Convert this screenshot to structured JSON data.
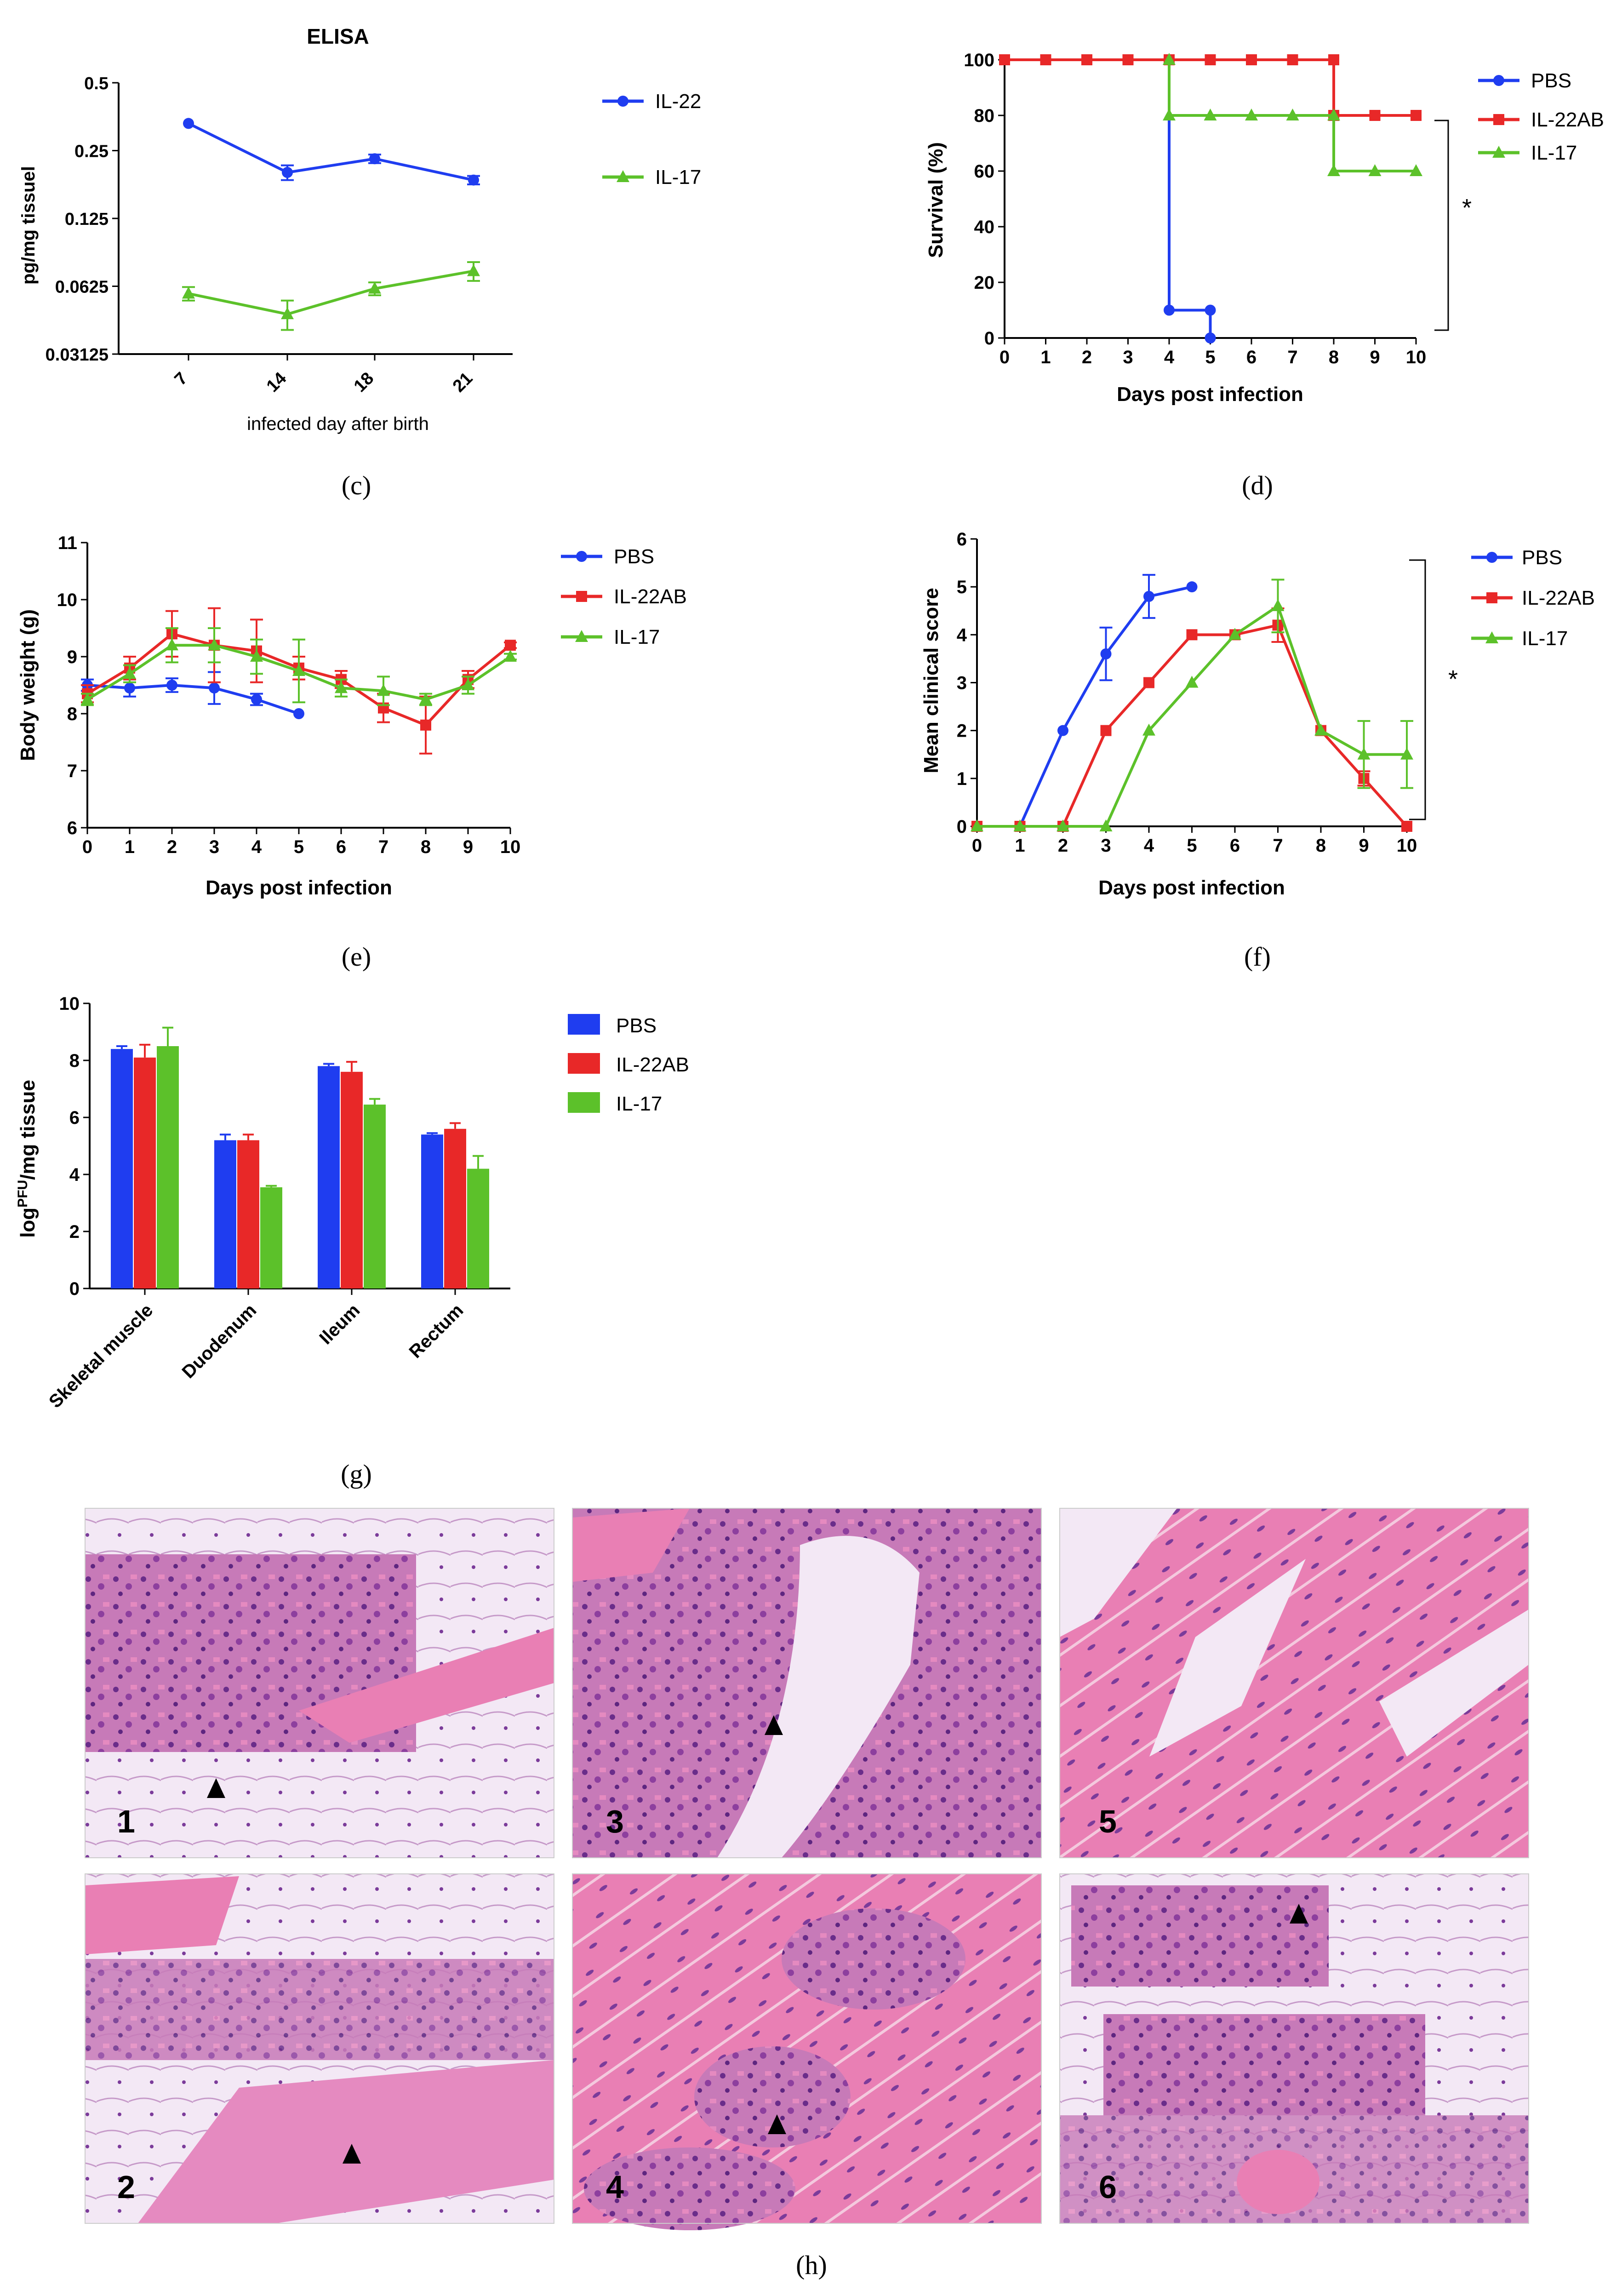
{
  "colors": {
    "blue": "#1f3df0",
    "red": "#e82828",
    "green": "#5cc12a",
    "axis": "#000000",
    "tissue_pink": "#e97fb4",
    "tissue_purple": "#8d3f9e",
    "tissue_bg": "#f1e6f3"
  },
  "panel_labels": {
    "c": "(c)",
    "d": "(d)",
    "e": "(e)",
    "f": "(f)",
    "g": "(g)",
    "h": "(h)"
  },
  "significance": "*",
  "chart_data": [
    {
      "id": "c",
      "type": "line",
      "title": "ELISA",
      "xlabel": "infected day after birth",
      "ylabel": "pg/mg tissuel",
      "categories": [
        "7",
        "14",
        "18",
        "21"
      ],
      "yscale": "log2",
      "ylim": [
        0.03125,
        0.5
      ],
      "yticks": [
        0.5,
        0.25,
        0.125,
        0.0625,
        0.03125
      ],
      "ytick_labels": [
        "0.5",
        "0.25",
        "0.125",
        "0.0625",
        "0.03125"
      ],
      "legend_position": "right",
      "series": [
        {
          "name": "IL-22",
          "color": "#1f3df0",
          "marker": "circle",
          "values": [
            0.33,
            0.2,
            0.23,
            0.185
          ],
          "err": [
            0.0,
            0.015,
            0.01,
            0.008
          ]
        },
        {
          "name": "IL-17",
          "color": "#5cc12a",
          "marker": "triangle",
          "values": [
            0.058,
            0.047,
            0.061,
            0.073
          ],
          "err": [
            0.004,
            0.007,
            0.004,
            0.007
          ]
        }
      ]
    },
    {
      "id": "d",
      "type": "line",
      "step": true,
      "xlabel": "Days post infection",
      "ylabel": "Survival (%)",
      "xlim": [
        0,
        10
      ],
      "ylim": [
        0,
        100
      ],
      "xticks": [
        0,
        1,
        2,
        3,
        4,
        5,
        6,
        7,
        8,
        9,
        10
      ],
      "yticks": [
        0,
        20,
        40,
        60,
        80,
        100
      ],
      "legend_position": "right",
      "series": [
        {
          "name": "PBS",
          "color": "#1f3df0",
          "marker": "circle",
          "x": [
            0,
            1,
            2,
            3,
            4,
            4,
            5,
            5
          ],
          "y": [
            100,
            100,
            100,
            100,
            100,
            10,
            10,
            0
          ]
        },
        {
          "name": "IL-22AB",
          "color": "#e82828",
          "marker": "square",
          "x": [
            0,
            1,
            2,
            3,
            4,
            5,
            6,
            7,
            8,
            8,
            9,
            10
          ],
          "y": [
            100,
            100,
            100,
            100,
            100,
            100,
            100,
            100,
            100,
            80,
            80,
            80
          ]
        },
        {
          "name": "IL-17",
          "color": "#5cc12a",
          "marker": "triangle",
          "x": [
            4,
            4,
            5,
            6,
            7,
            8,
            8,
            9,
            10
          ],
          "y": [
            100,
            80,
            80,
            80,
            80,
            80,
            60,
            60,
            60
          ]
        }
      ]
    },
    {
      "id": "e",
      "type": "line",
      "xlabel": "Days post infection",
      "ylabel": "Body weight (g)",
      "xlim": [
        0,
        10
      ],
      "ylim": [
        6,
        11
      ],
      "xticks": [
        0,
        1,
        2,
        3,
        4,
        5,
        6,
        7,
        8,
        9,
        10
      ],
      "yticks": [
        6,
        7,
        8,
        9,
        10,
        11
      ],
      "legend_position": "right",
      "series": [
        {
          "name": "PBS",
          "color": "#1f3df0",
          "marker": "circle",
          "x": [
            0,
            1,
            2,
            3,
            4,
            5
          ],
          "y": [
            8.5,
            8.45,
            8.5,
            8.45,
            8.25,
            8.0
          ],
          "err": [
            0.1,
            0.15,
            0.12,
            0.28,
            0.1,
            0.0
          ]
        },
        {
          "name": "IL-22AB",
          "color": "#e82828",
          "marker": "square",
          "x": [
            0,
            1,
            2,
            3,
            4,
            5,
            6,
            7,
            8,
            9,
            10
          ],
          "y": [
            8.35,
            8.8,
            9.4,
            9.2,
            9.1,
            8.8,
            8.6,
            8.1,
            7.8,
            8.6,
            9.2
          ],
          "err": [
            0.15,
            0.2,
            0.4,
            0.65,
            0.55,
            0.2,
            0.15,
            0.25,
            0.5,
            0.15,
            0.05
          ]
        },
        {
          "name": "IL-17",
          "color": "#5cc12a",
          "marker": "triangle",
          "x": [
            0,
            1,
            2,
            3,
            4,
            5,
            6,
            7,
            8,
            9,
            10
          ],
          "y": [
            8.25,
            8.7,
            9.2,
            9.2,
            9.0,
            8.75,
            8.45,
            8.4,
            8.25,
            8.5,
            9.0
          ],
          "err": [
            0.1,
            0.15,
            0.3,
            0.3,
            0.3,
            0.55,
            0.15,
            0.25,
            0.1,
            0.15,
            0.05
          ]
        }
      ]
    },
    {
      "id": "f",
      "type": "line",
      "xlabel": "Days post infection",
      "ylabel": "Mean clinical score",
      "xlim": [
        0,
        10
      ],
      "ylim": [
        0,
        6
      ],
      "xticks": [
        0,
        1,
        2,
        3,
        4,
        5,
        6,
        7,
        8,
        9,
        10
      ],
      "yticks": [
        0,
        1,
        2,
        3,
        4,
        5,
        6
      ],
      "legend_position": "right",
      "series": [
        {
          "name": "PBS",
          "color": "#1f3df0",
          "marker": "circle",
          "x": [
            0,
            1,
            2,
            3,
            4,
            5
          ],
          "y": [
            0,
            0,
            2,
            3.6,
            4.8,
            5
          ],
          "err": [
            0,
            0,
            0,
            0.55,
            0.45,
            0
          ]
        },
        {
          "name": "IL-22AB",
          "color": "#e82828",
          "marker": "square",
          "x": [
            0,
            1,
            2,
            3,
            4,
            5,
            6,
            7,
            8,
            9,
            10
          ],
          "y": [
            0,
            0,
            0,
            2,
            3,
            4,
            4,
            4.2,
            2,
            1,
            0
          ],
          "err": [
            0,
            0,
            0,
            0,
            0,
            0,
            0,
            0.35,
            0,
            0.15,
            0
          ]
        },
        {
          "name": "IL-17",
          "color": "#5cc12a",
          "marker": "triangle",
          "x": [
            0,
            1,
            2,
            3,
            4,
            5,
            6,
            7,
            8,
            9,
            10
          ],
          "y": [
            0,
            0,
            0,
            0,
            2,
            3,
            4,
            4.6,
            2,
            1.5,
            1.5
          ],
          "err": [
            0,
            0,
            0,
            0,
            0,
            0,
            0,
            0.55,
            0,
            0.7,
            0.7
          ]
        }
      ]
    },
    {
      "id": "g",
      "type": "bar",
      "xlabel": "",
      "ylabel": "log PFU/mg tissue",
      "ylabel_main": "log",
      "ylabel_sup": "PFU",
      "ylabel_rest": "/mg tissue",
      "categories": [
        "Skeletal muscle",
        "Duodenum",
        "Ileum",
        "Rectum"
      ],
      "ylim": [
        0,
        10
      ],
      "yticks": [
        0,
        2,
        4,
        6,
        8,
        10
      ],
      "legend_position": "right",
      "series": [
        {
          "name": "PBS",
          "color": "#1f3df0",
          "values": [
            8.4,
            5.2,
            7.8,
            5.4
          ],
          "err": [
            0.1,
            0.2,
            0.08,
            0.05
          ]
        },
        {
          "name": "IL-22AB",
          "color": "#e82828",
          "values": [
            8.1,
            5.2,
            7.6,
            5.6
          ],
          "err": [
            0.45,
            0.2,
            0.35,
            0.2
          ]
        },
        {
          "name": "IL-17",
          "color": "#5cc12a",
          "values": [
            8.5,
            3.55,
            6.45,
            4.2
          ],
          "err": [
            0.65,
            0.05,
            0.2,
            0.45
          ]
        }
      ]
    }
  ],
  "micrographs": [
    {
      "label": "1",
      "arrow": true
    },
    {
      "label": "3",
      "arrow": true
    },
    {
      "label": "5",
      "arrow": false
    },
    {
      "label": "2",
      "arrow": true
    },
    {
      "label": "4",
      "arrow": true
    },
    {
      "label": "6",
      "arrow": true
    }
  ]
}
